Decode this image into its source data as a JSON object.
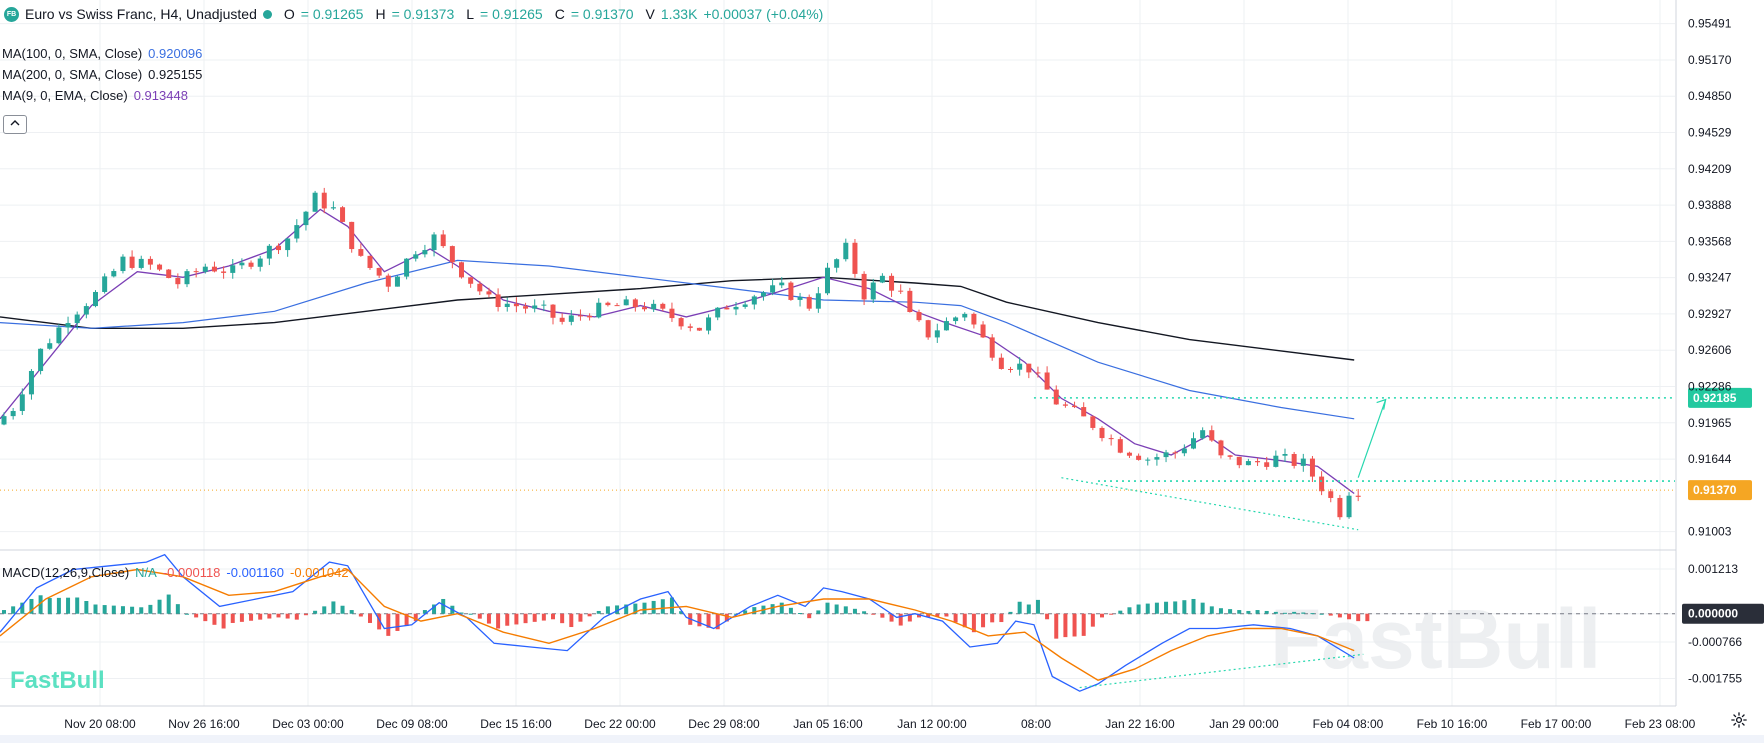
{
  "header": {
    "logo_text": "FB",
    "title": "Euro vs Swiss Franc, H4, Unadjusted",
    "open_label": "O",
    "open_value": "= 0.91265",
    "high_label": "H",
    "high_value": "= 0.91373",
    "low_label": "L",
    "low_value": "= 0.91265",
    "close_label": "C",
    "close_value": "= 0.91370",
    "volume_label": "V",
    "volume_value": "1.33K",
    "change_value": "+0.00037 (+0.04%)"
  },
  "indicators": [
    {
      "label": "MA(100, 0, SMA, Close)",
      "value": "0.920096",
      "color": "#3a6fe0"
    },
    {
      "label": "MA(200, 0, SMA, Close)",
      "value": "0.925155",
      "color": "#131722"
    },
    {
      "label": "MA(9, 0, EMA, Close)",
      "value": "0.913448",
      "color": "#7b3fb5"
    }
  ],
  "collapse_icon": "chevron-up-icon",
  "macd_legend": {
    "label": "MACD(12,26,9,Close)",
    "na": "N/A",
    "hist": "-0.000118",
    "macd": "-0.001160",
    "signal": "-0.001042"
  },
  "watermark": "FastBull",
  "colors": {
    "up": "#26a69a",
    "down": "#ef5350",
    "ma100": "#3a6fe0",
    "ma200": "#131722",
    "ema9": "#7b3fb5",
    "macd": "#2962ff",
    "signal": "#f57c00",
    "accent": "#26d7ae"
  },
  "chart_data": [
    {
      "type": "candlestick",
      "title": "Euro vs Swiss Franc, H4, Unadjusted",
      "ylim": [
        0.9085,
        0.957
      ],
      "y_ticks": [
        "0.95491",
        "0.95170",
        "0.94850",
        "0.94529",
        "0.94209",
        "0.93888",
        "0.93568",
        "0.93247",
        "0.92927",
        "0.92606",
        "0.92286",
        "0.91965",
        "0.91644",
        "0.91003"
      ],
      "x_ticks": [
        "Nov 20 08:00",
        "Nov 26 16:00",
        "Dec 03 00:00",
        "Dec 09 08:00",
        "Dec 15 16:00",
        "Dec 22 00:00",
        "Dec 29 08:00",
        "Jan 05 16:00",
        "Jan 12 00:00",
        "08:00",
        "Jan 22 16:00",
        "Jan 29 00:00",
        "Feb 04 08:00",
        "Feb 10 16:00",
        "Feb 17 00:00",
        "Feb 23 08:00"
      ],
      "price_path": [
        [
          0,
          0.9195
        ],
        [
          2,
          0.921
        ],
        [
          5,
          0.926
        ],
        [
          8,
          0.929
        ],
        [
          11,
          0.931
        ],
        [
          14,
          0.934
        ],
        [
          17,
          0.9335
        ],
        [
          20,
          0.932
        ],
        [
          23,
          0.9335
        ],
        [
          26,
          0.933
        ],
        [
          29,
          0.9345
        ],
        [
          32,
          0.936
        ],
        [
          35,
          0.9395
        ],
        [
          37,
          0.9385
        ],
        [
          40,
          0.934
        ],
        [
          43,
          0.932
        ],
        [
          46,
          0.935
        ],
        [
          48,
          0.936
        ],
        [
          51,
          0.933
        ],
        [
          54,
          0.9305
        ],
        [
          57,
          0.93
        ],
        [
          60,
          0.9295
        ],
        [
          62,
          0.9285
        ],
        [
          65,
          0.9295
        ],
        [
          68,
          0.93
        ],
        [
          71,
          0.93
        ],
        [
          74,
          0.929
        ],
        [
          77,
          0.928
        ],
        [
          80,
          0.93
        ],
        [
          83,
          0.931
        ],
        [
          86,
          0.9315
        ],
        [
          89,
          0.93
        ],
        [
          91,
          0.933
        ],
        [
          93,
          0.935
        ],
        [
          95,
          0.931
        ],
        [
          97,
          0.9325
        ],
        [
          99,
          0.931
        ],
        [
          100,
          0.929
        ],
        [
          102,
          0.9275
        ],
        [
          104,
          0.9285
        ],
        [
          106,
          0.9295
        ],
        [
          108,
          0.927
        ],
        [
          110,
          0.925
        ],
        [
          113,
          0.9245
        ],
        [
          116,
          0.9215
        ],
        [
          118,
          0.9205
        ],
        [
          120,
          0.9195
        ],
        [
          123,
          0.9175
        ],
        [
          126,
          0.9165
        ],
        [
          129,
          0.917
        ],
        [
          132,
          0.919
        ],
        [
          134,
          0.9165
        ],
        [
          137,
          0.916
        ],
        [
          140,
          0.9165
        ],
        [
          143,
          0.916
        ],
        [
          145,
          0.914
        ],
        [
          147,
          0.9118
        ],
        [
          148,
          0.9137
        ]
      ],
      "ma100": [
        [
          0,
          0.9285
        ],
        [
          10,
          0.928
        ],
        [
          20,
          0.9285
        ],
        [
          30,
          0.9295
        ],
        [
          40,
          0.932
        ],
        [
          50,
          0.934
        ],
        [
          60,
          0.9335
        ],
        [
          70,
          0.9325
        ],
        [
          80,
          0.9315
        ],
        [
          90,
          0.9305
        ],
        [
          100,
          0.9303
        ],
        [
          105,
          0.93
        ],
        [
          110,
          0.9285
        ],
        [
          120,
          0.925
        ],
        [
          130,
          0.9225
        ],
        [
          140,
          0.921
        ],
        [
          148,
          0.92
        ]
      ],
      "ma200": [
        [
          0,
          0.929
        ],
        [
          10,
          0.928
        ],
        [
          20,
          0.928
        ],
        [
          30,
          0.9285
        ],
        [
          40,
          0.9295
        ],
        [
          50,
          0.9305
        ],
        [
          60,
          0.931
        ],
        [
          70,
          0.9315
        ],
        [
          80,
          0.9322
        ],
        [
          90,
          0.9325
        ],
        [
          100,
          0.932
        ],
        [
          105,
          0.9317
        ],
        [
          110,
          0.9303
        ],
        [
          120,
          0.9285
        ],
        [
          130,
          0.927
        ],
        [
          140,
          0.926
        ],
        [
          148,
          0.9252
        ]
      ],
      "ema9": [
        [
          0,
          0.92
        ],
        [
          5,
          0.925
        ],
        [
          10,
          0.93
        ],
        [
          15,
          0.933
        ],
        [
          20,
          0.9325
        ],
        [
          25,
          0.9335
        ],
        [
          30,
          0.935
        ],
        [
          35,
          0.9385
        ],
        [
          38,
          0.937
        ],
        [
          42,
          0.933
        ],
        [
          47,
          0.935
        ],
        [
          50,
          0.9335
        ],
        [
          55,
          0.9305
        ],
        [
          60,
          0.9295
        ],
        [
          65,
          0.929
        ],
        [
          70,
          0.93
        ],
        [
          75,
          0.929
        ],
        [
          80,
          0.93
        ],
        [
          85,
          0.9312
        ],
        [
          90,
          0.9325
        ],
        [
          95,
          0.9315
        ],
        [
          100,
          0.9295
        ],
        [
          104,
          0.9283
        ],
        [
          108,
          0.9272
        ],
        [
          112,
          0.925
        ],
        [
          116,
          0.9218
        ],
        [
          120,
          0.92
        ],
        [
          124,
          0.9178
        ],
        [
          128,
          0.9168
        ],
        [
          132,
          0.9185
        ],
        [
          135,
          0.9168
        ],
        [
          140,
          0.9163
        ],
        [
          144,
          0.9158
        ],
        [
          147,
          0.914
        ],
        [
          148,
          0.9134
        ]
      ],
      "levels": [
        {
          "name": "resistance",
          "value": 0.92185,
          "label": "0.92185"
        },
        {
          "name": "support",
          "value": 0.9145,
          "label": ""
        },
        {
          "name": "last",
          "value": 0.9137,
          "label": "0.91370"
        }
      ],
      "n_bars": 149,
      "forecast_arrow": {
        "from": [
          148,
          0.9148
        ],
        "to": [
          151,
          0.9217
        ]
      },
      "trend_line": {
        "from": [
          116,
          0.9148
        ],
        "to": [
          148,
          0.9102
        ]
      }
    },
    {
      "type": "macd",
      "ylim": [
        -0.0025,
        0.0017
      ],
      "y_ticks": [
        "0.001213",
        "0.000000",
        "-0.000766",
        "-0.001755"
      ],
      "zero_label": "0.000000",
      "macd": [
        [
          0,
          -0.0005
        ],
        [
          4,
          0.0007
        ],
        [
          8,
          0.0012
        ],
        [
          12,
          0.0013
        ],
        [
          16,
          0.0014
        ],
        [
          18,
          0.0016
        ],
        [
          20,
          0.001
        ],
        [
          24,
          0.0002
        ],
        [
          28,
          0.0004
        ],
        [
          32,
          0.0006
        ],
        [
          36,
          0.0014
        ],
        [
          38,
          0.0013
        ],
        [
          42,
          -0.0004
        ],
        [
          45,
          -0.0003
        ],
        [
          48,
          0.0003
        ],
        [
          51,
          -0.0001
        ],
        [
          54,
          -0.0008
        ],
        [
          58,
          -0.0009
        ],
        [
          62,
          -0.001
        ],
        [
          66,
          -0.0001
        ],
        [
          70,
          0.0004
        ],
        [
          73,
          0.0006
        ],
        [
          75,
          -0.0001
        ],
        [
          78,
          -0.0004
        ],
        [
          82,
          0.0002
        ],
        [
          85,
          0.0005
        ],
        [
          88,
          0.0002
        ],
        [
          90,
          0.0007
        ],
        [
          92,
          0.0006
        ],
        [
          95,
          0.0004
        ],
        [
          98,
          -0.0001
        ],
        [
          100,
          0.0
        ],
        [
          103,
          -0.0002
        ],
        [
          106,
          -0.0009
        ],
        [
          109,
          -0.0008
        ],
        [
          111,
          -0.0002
        ],
        [
          113,
          -0.0003
        ],
        [
          115,
          -0.0017
        ],
        [
          118,
          -0.0021
        ],
        [
          120,
          -0.0019
        ],
        [
          123,
          -0.0014
        ],
        [
          127,
          -0.0008
        ],
        [
          130,
          -0.0004
        ],
        [
          133,
          -0.0004
        ],
        [
          137,
          -0.0003
        ],
        [
          141,
          -0.0004
        ],
        [
          144,
          -0.0006
        ],
        [
          148,
          -0.0012
        ]
      ],
      "signal": [
        [
          0,
          -0.0006
        ],
        [
          5,
          0.0004
        ],
        [
          10,
          0.001
        ],
        [
          15,
          0.0012
        ],
        [
          20,
          0.001
        ],
        [
          25,
          0.0005
        ],
        [
          30,
          0.0006
        ],
        [
          35,
          0.001
        ],
        [
          38,
          0.0012
        ],
        [
          42,
          0.0002
        ],
        [
          46,
          -0.0002
        ],
        [
          50,
          0.0
        ],
        [
          55,
          -0.0005
        ],
        [
          60,
          -0.0008
        ],
        [
          65,
          -0.0004
        ],
        [
          70,
          0.0001
        ],
        [
          75,
          0.0002
        ],
        [
          80,
          -0.0001
        ],
        [
          85,
          0.0002
        ],
        [
          90,
          0.0004
        ],
        [
          95,
          0.0004
        ],
        [
          100,
          0.0001
        ],
        [
          104,
          -0.0002
        ],
        [
          108,
          -0.0006
        ],
        [
          112,
          -0.0005
        ],
        [
          116,
          -0.0012
        ],
        [
          120,
          -0.0018
        ],
        [
          124,
          -0.0015
        ],
        [
          128,
          -0.001
        ],
        [
          132,
          -0.0006
        ],
        [
          136,
          -0.0004
        ],
        [
          140,
          -0.0004
        ],
        [
          144,
          -0.0006
        ],
        [
          148,
          -0.001
        ]
      ],
      "divergence_line": {
        "from": [
          118,
          -0.002
        ],
        "to": [
          149,
          -0.0011
        ]
      }
    }
  ]
}
